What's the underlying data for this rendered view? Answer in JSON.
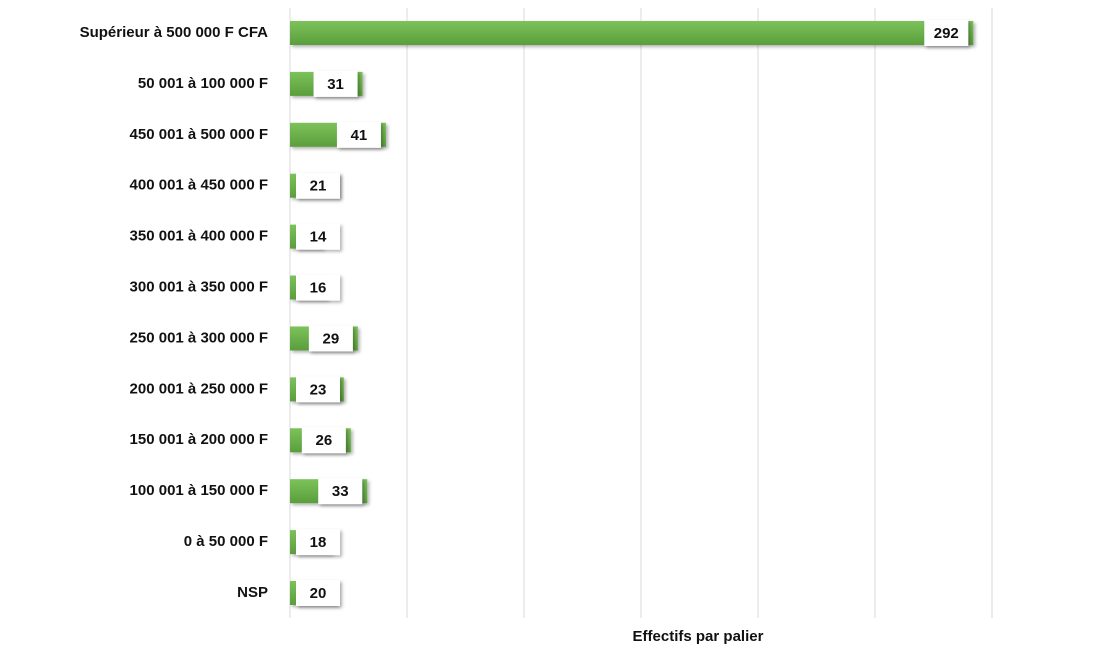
{
  "chart_data": {
    "type": "barh",
    "categories": [
      "Supérieur à 500 000 F CFA",
      "50 001 à 100 000 F",
      "450 001 à 500 000 F",
      "400 001 à 450 000 F",
      "350 001 à 400 000 F",
      "300 001 à 350 000 F",
      "250 001 à 300 000 F",
      "200 001 à 250 000 F",
      "150 001 à 200 000 F",
      "100 001 à 150 000 F",
      "0 à 50 000 F",
      "NSP"
    ],
    "values": [
      292,
      31,
      41,
      21,
      14,
      16,
      29,
      23,
      26,
      33,
      18,
      20
    ],
    "color": "#6ab04c",
    "xlabel": "Effectifs par palier",
    "xlim": [
      0,
      300
    ],
    "xticks": [
      0,
      50,
      100,
      150,
      200,
      250,
      300
    ],
    "grid": true
  }
}
